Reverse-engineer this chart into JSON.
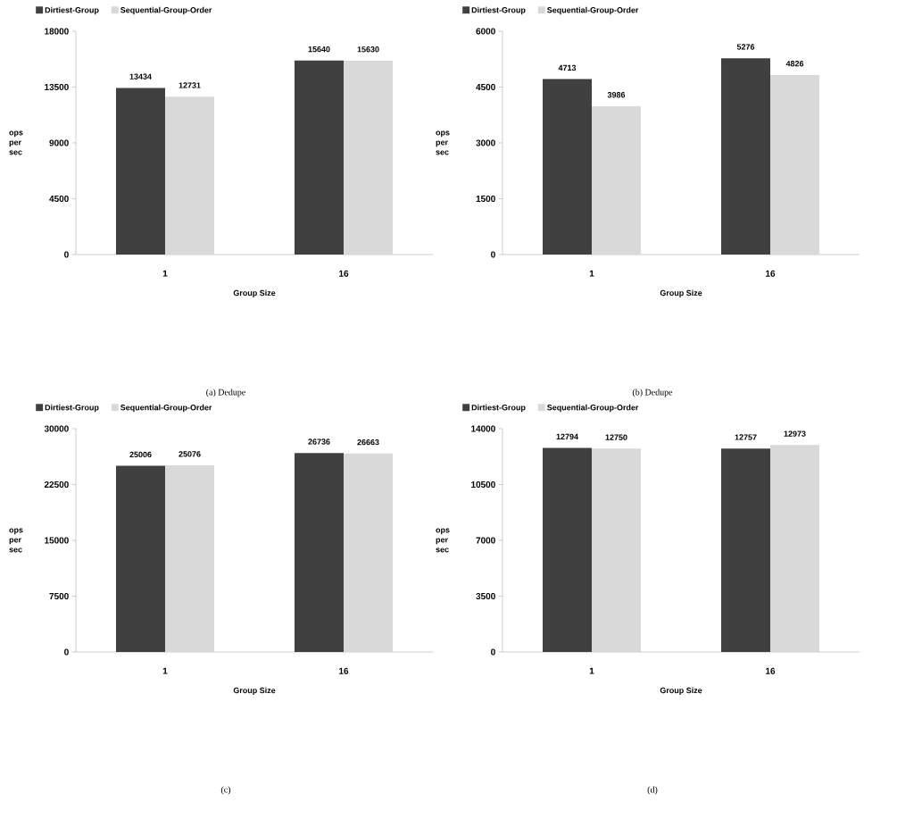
{
  "chart_data": [
    {
      "type": "bar",
      "categories": [
        "1",
        "16"
      ],
      "xlabel": "Group Size",
      "ylabel": "ops per sec",
      "ylim": [
        0,
        18000
      ],
      "yticks": [
        0,
        4500,
        9000,
        13500,
        18000
      ],
      "data_labels": true,
      "legend": "top",
      "annotations": [
        "(a) Dedupe"
      ],
      "series": [
        {
          "name": "Dirtiest-Group",
          "color": "#404040",
          "values": [
            13434,
            15640
          ]
        },
        {
          "name": "Sequential-Group-Order",
          "color": "#d9d9d9",
          "values": [
            12731,
            15630
          ]
        }
      ]
    },
    {
      "type": "bar",
      "categories": [
        "1",
        "16"
      ],
      "xlabel": "Group Size",
      "ylabel": "ops per sec",
      "ylim": [
        0,
        6000
      ],
      "yticks": [
        0,
        1500,
        3000,
        4500,
        6000
      ],
      "data_labels": true,
      "legend": "top",
      "annotations": [
        "(b) Dedupe"
      ],
      "series": [
        {
          "name": "Dirtiest-Group",
          "color": "#404040",
          "values": [
            4713,
            5276
          ]
        },
        {
          "name": "Sequential-Group-Order",
          "color": "#d9d9d9",
          "values": [
            3986,
            4826
          ]
        }
      ]
    },
    {
      "type": "bar",
      "categories": [
        "1",
        "16"
      ],
      "xlabel": "Group Size",
      "ylabel": "ops per sec",
      "ylim": [
        0,
        30000
      ],
      "yticks": [
        0,
        7500,
        15000,
        22500,
        30000
      ],
      "data_labels": true,
      "legend": "top",
      "annotations": [
        "(c)"
      ],
      "series": [
        {
          "name": "Dirtiest-Group",
          "color": "#404040",
          "values": [
            25006,
            26736
          ]
        },
        {
          "name": "Sequential-Group-Order",
          "color": "#d9d9d9",
          "values": [
            25076,
            26663
          ]
        }
      ]
    },
    {
      "type": "bar",
      "categories": [
        "1",
        "16"
      ],
      "xlabel": "Group Size",
      "ylabel": "ops per sec",
      "ylim": [
        0,
        14000
      ],
      "yticks": [
        0,
        3500,
        7000,
        10500,
        14000
      ],
      "data_labels": true,
      "legend": "top",
      "annotations": [
        "(d)"
      ],
      "series": [
        {
          "name": "Dirtiest-Group",
          "color": "#404040",
          "values": [
            12794,
            12757
          ]
        },
        {
          "name": "Sequential-Group-Order",
          "color": "#d9d9d9",
          "values": [
            12750,
            12973
          ]
        }
      ]
    }
  ]
}
